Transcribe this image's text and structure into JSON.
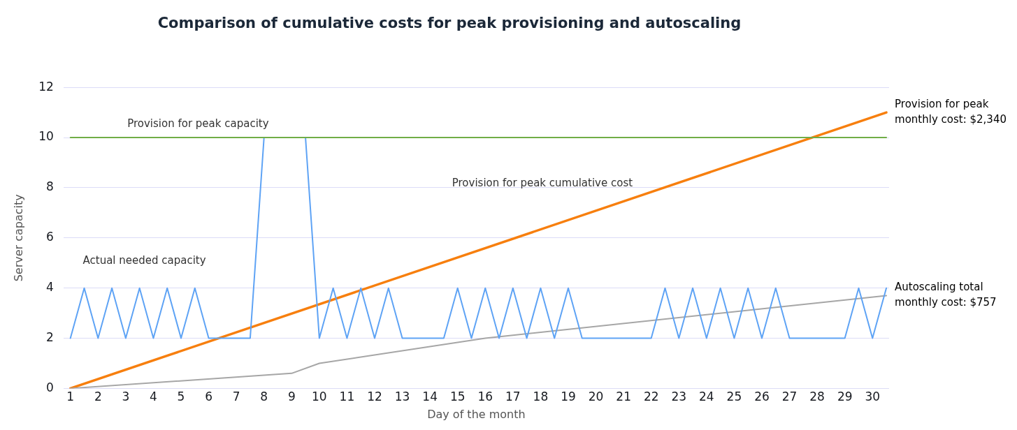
{
  "chart_data": {
    "type": "line",
    "title": "Comparison of cumulative costs for peak provisioning and autoscaling",
    "xlabel": "Day of the month",
    "ylabel": "Server capacity",
    "xlim": [
      0.75,
      30.6
    ],
    "xticks": [
      1,
      2,
      3,
      4,
      5,
      6,
      7,
      8,
      9,
      10,
      11,
      12,
      13,
      14,
      15,
      16,
      17,
      18,
      19,
      20,
      21,
      22,
      23,
      24,
      25,
      26,
      27,
      28,
      29,
      30
    ],
    "ylim": [
      0,
      12
    ],
    "yticks": [
      0,
      2,
      4,
      6,
      8,
      10,
      12
    ],
    "grid": "y",
    "legend": false,
    "marker": "none",
    "line_style": "solid",
    "series": [
      {
        "name": "Provision for peak capacity",
        "color": "#70ad47",
        "x": [
          1,
          30.5
        ],
        "values": [
          10,
          10
        ]
      },
      {
        "name": "Actual needed capacity",
        "color": "#5ea3f5",
        "x": [
          1,
          1.5,
          2,
          2.5,
          3,
          3.5,
          4,
          4.5,
          5,
          5.5,
          6,
          7.5,
          8,
          9.5,
          10,
          10.5,
          11,
          11.5,
          12,
          12.5,
          13,
          14.5,
          15,
          15.5,
          16,
          16.5,
          17,
          17.5,
          18,
          18.5,
          19,
          19.5,
          22,
          22.5,
          23,
          23.5,
          24,
          24.5,
          25,
          25.5,
          26,
          26.5,
          27,
          29,
          29.5,
          30,
          30.5
        ],
        "values": [
          2,
          4,
          2,
          4,
          2,
          4,
          2,
          4,
          2,
          4,
          2,
          2,
          10,
          10,
          2,
          4,
          2,
          4,
          2,
          4,
          2,
          2,
          4,
          2,
          4,
          2,
          4,
          2,
          4,
          2,
          4,
          2,
          2,
          4,
          2,
          4,
          2,
          4,
          2,
          4,
          2,
          4,
          2,
          2,
          4,
          2,
          4
        ]
      },
      {
        "color": "#a6a6a6",
        "x": [
          1,
          9,
          10,
          16,
          30.5
        ],
        "values": [
          0,
          0.6,
          1,
          2,
          3.7
        ]
      },
      {
        "name": "Provision for peak cumulative cost",
        "color": "#f77f0e",
        "x": [
          1,
          30.5
        ],
        "values": [
          0,
          11
        ]
      }
    ],
    "annotations": [
      {
        "text": "Provision for peak\nmonthly cost: $2,340",
        "x": 30.5,
        "y": 11
      },
      {
        "text": "Autoscaling total\nmonthly cost: $757",
        "x": 30.5,
        "y": 3.7
      }
    ]
  }
}
